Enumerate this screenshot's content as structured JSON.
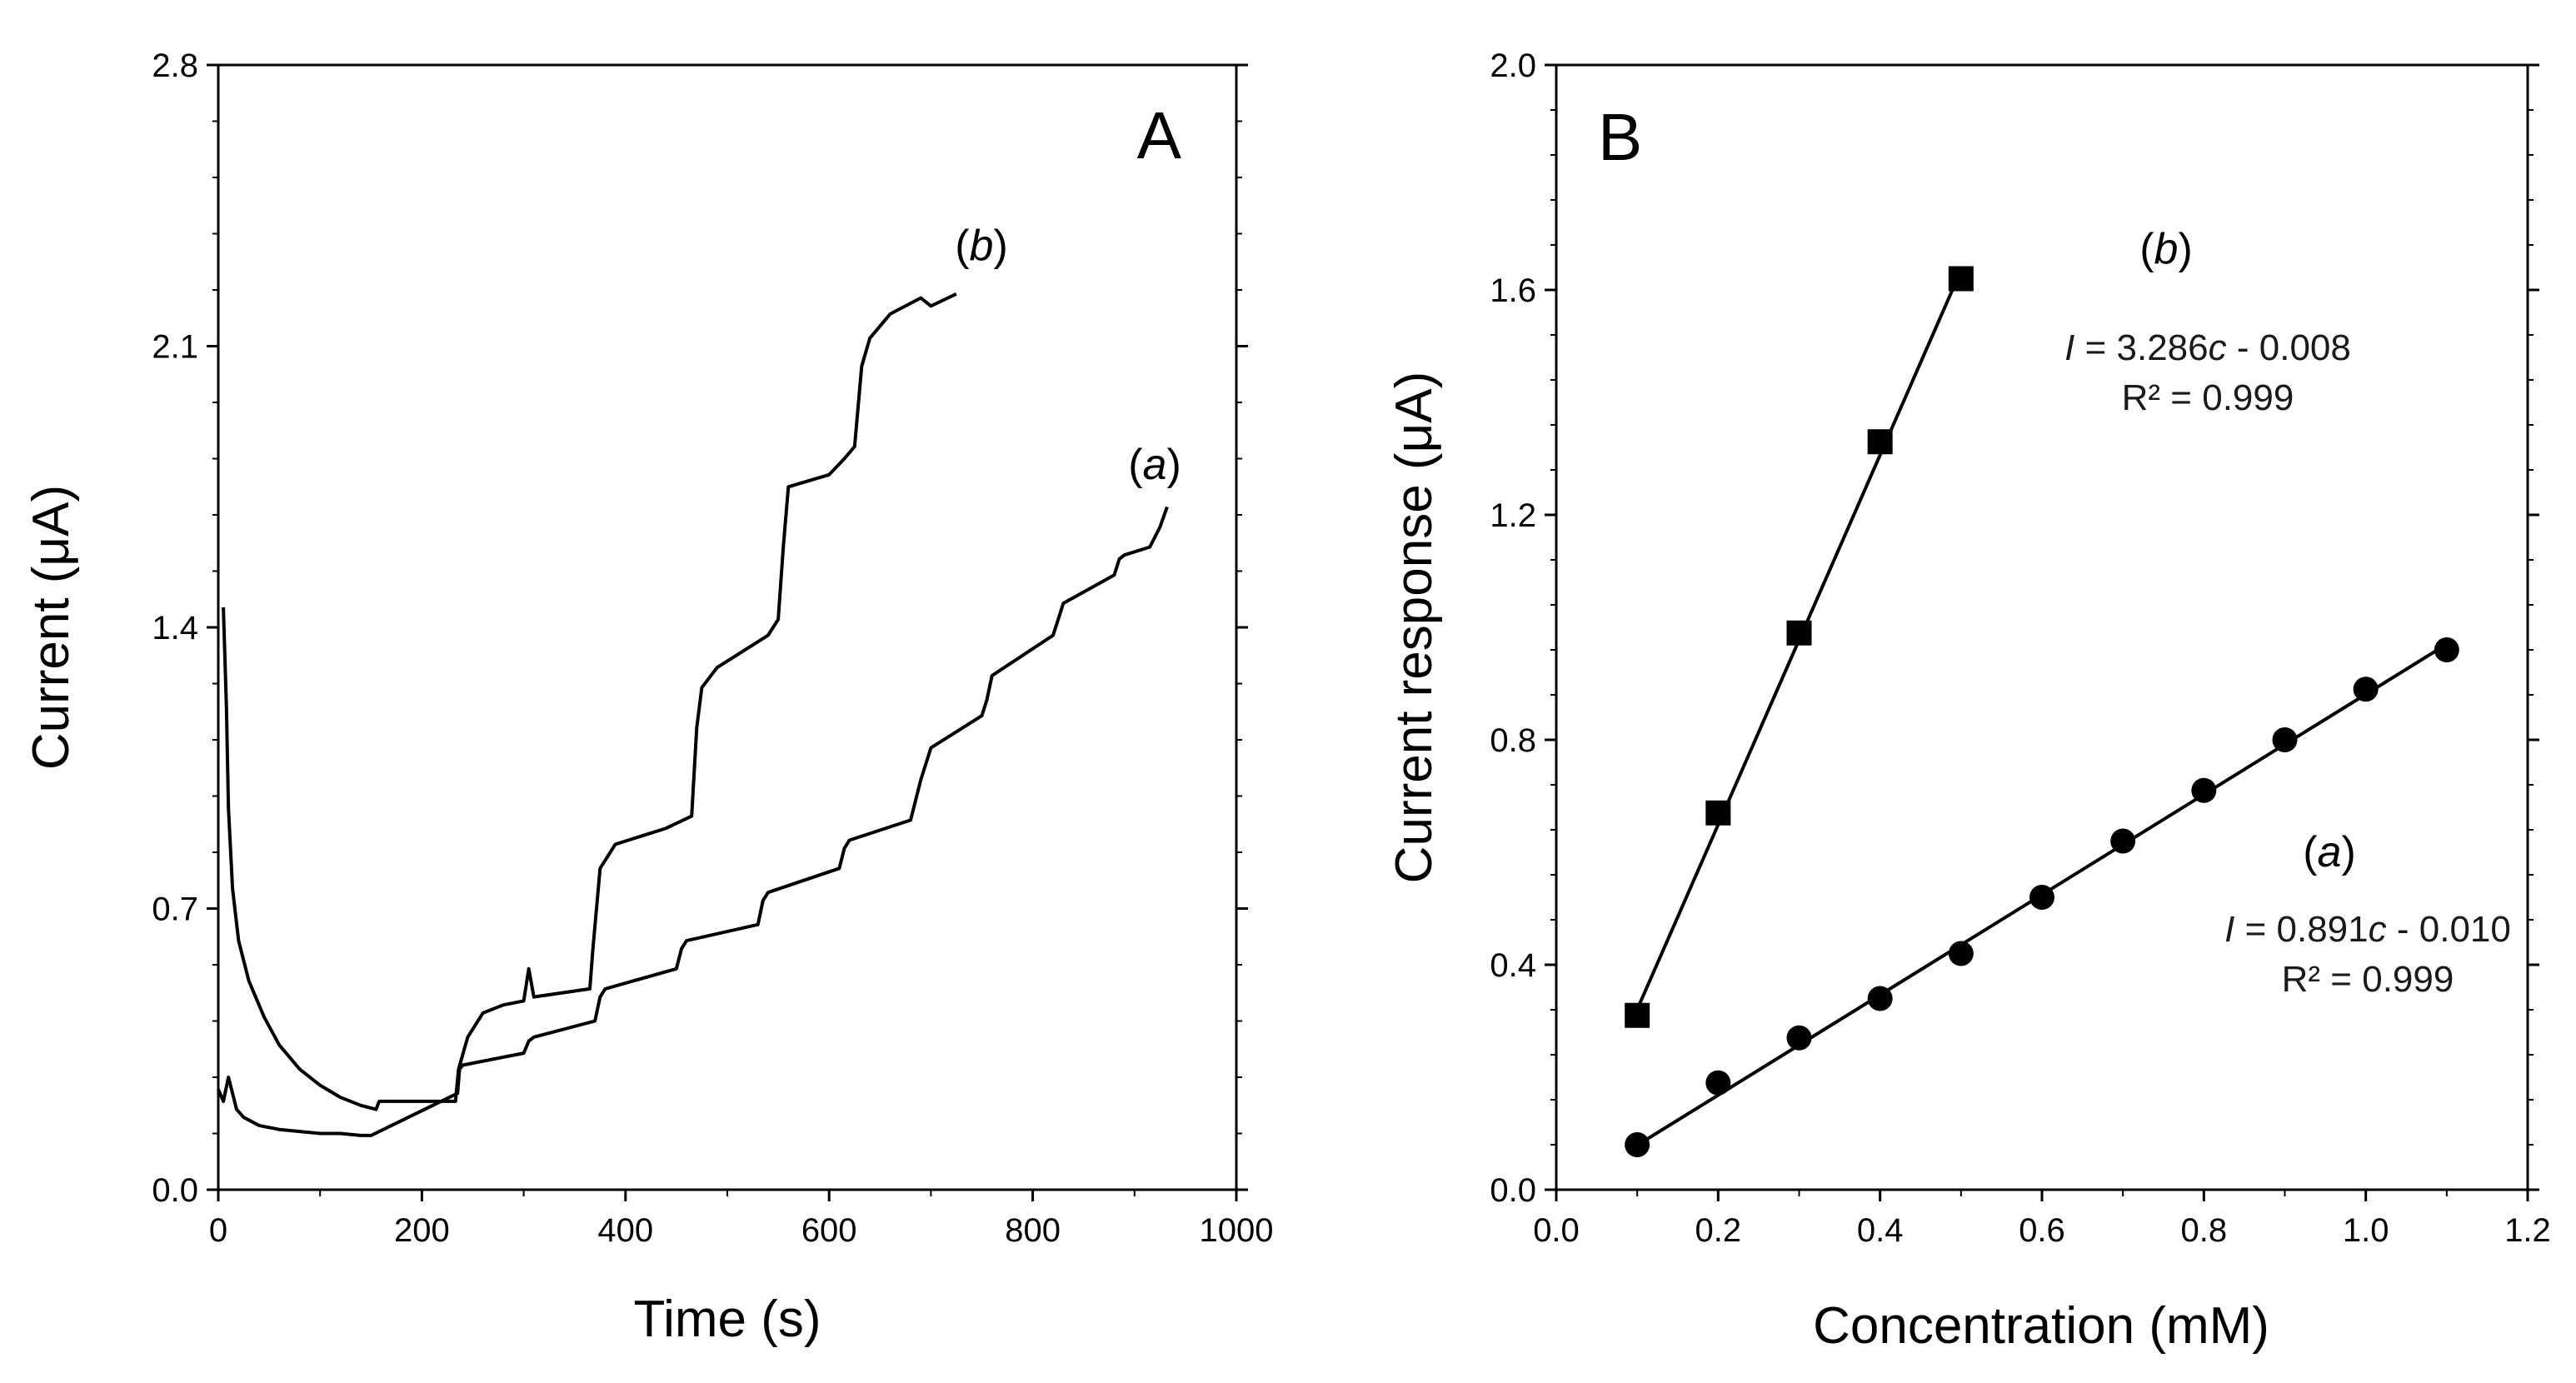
{
  "chart_data": [
    {
      "type": "line",
      "panel_label": "A",
      "xlabel": "Time (s)",
      "ylabel": "Current (μA)",
      "xlim": [
        0,
        1000
      ],
      "ylim": [
        0,
        2.8
      ],
      "xticks": [
        "0",
        "200",
        "400",
        "600",
        "800",
        "1000"
      ],
      "yticks": [
        "0.0",
        "0.7",
        "1.4",
        "2.1",
        "2.8"
      ],
      "grid": false,
      "series": [
        {
          "name": "a",
          "label_prefix": "(",
          "label_name": "a",
          "label_suffix": ")",
          "x": [
            0,
            5,
            10,
            14,
            18,
            25,
            40,
            60,
            80,
            100,
            120,
            140,
            150,
            235,
            237,
            240,
            300,
            305,
            310,
            370,
            375,
            380,
            450,
            455,
            460,
            530,
            535,
            540,
            610,
            615,
            620,
            680,
            690,
            700,
            750,
            755,
            760,
            820,
            825,
            830,
            880,
            885,
            890,
            915,
            925,
            932
          ],
          "y": [
            0.25,
            0.22,
            0.28,
            0.24,
            0.2,
            0.18,
            0.16,
            0.15,
            0.145,
            0.14,
            0.14,
            0.135,
            0.135,
            0.24,
            0.3,
            0.31,
            0.34,
            0.37,
            0.38,
            0.42,
            0.48,
            0.5,
            0.55,
            0.6,
            0.62,
            0.66,
            0.72,
            0.74,
            0.8,
            0.85,
            0.87,
            0.92,
            1.02,
            1.1,
            1.18,
            1.22,
            1.28,
            1.38,
            1.42,
            1.46,
            1.53,
            1.57,
            1.58,
            1.6,
            1.65,
            1.7
          ]
        },
        {
          "name": "b",
          "label_prefix": "(",
          "label_name": "b",
          "label_suffix": ")",
          "x": [
            5,
            8,
            10,
            14,
            20,
            30,
            45,
            60,
            80,
            100,
            120,
            140,
            155,
            158,
            160,
            200,
            233,
            236,
            245,
            260,
            280,
            300,
            305,
            310,
            365,
            368,
            375,
            390,
            440,
            465,
            470,
            475,
            490,
            540,
            550,
            555,
            560,
            600,
            615,
            625,
            632,
            640,
            660,
            690,
            700,
            725
          ],
          "y": [
            1.45,
            1.2,
            0.95,
            0.75,
            0.62,
            0.52,
            0.43,
            0.36,
            0.3,
            0.26,
            0.23,
            0.21,
            0.2,
            0.22,
            0.22,
            0.22,
            0.22,
            0.3,
            0.38,
            0.44,
            0.46,
            0.47,
            0.55,
            0.48,
            0.5,
            0.6,
            0.8,
            0.86,
            0.9,
            0.93,
            1.15,
            1.25,
            1.3,
            1.38,
            1.42,
            1.6,
            1.75,
            1.78,
            1.82,
            1.85,
            2.05,
            2.12,
            2.18,
            2.22,
            2.2,
            2.23
          ]
        }
      ]
    },
    {
      "type": "scatter",
      "panel_label": "B",
      "xlabel": "Concentration (mM)",
      "ylabel": "Current response (μA)",
      "xlim": [
        0,
        1.2
      ],
      "ylim": [
        0,
        2.0
      ],
      "xticks": [
        "0.0",
        "0.2",
        "0.4",
        "0.6",
        "0.8",
        "1.0",
        "1.2"
      ],
      "yticks": [
        "0.0",
        "0.4",
        "0.8",
        "1.2",
        "1.6",
        "2.0"
      ],
      "grid": false,
      "series": [
        {
          "name": "a",
          "marker": "circle",
          "x": [
            0.1,
            0.2,
            0.3,
            0.4,
            0.5,
            0.6,
            0.7,
            0.8,
            0.9,
            1.0,
            1.1
          ],
          "y": [
            0.08,
            0.19,
            0.27,
            0.34,
            0.42,
            0.52,
            0.62,
            0.71,
            0.8,
            0.89,
            0.96
          ],
          "fit": {
            "slope": 0.891,
            "intercept": -0.01
          },
          "label_prefix": "(",
          "label_name": "a",
          "label_suffix": ")",
          "eq_var": "I",
          "eq_mid": " = 0.891",
          "eq_c": "c",
          "eq_tail": " - 0.010",
          "r2": "R² = 0.999"
        },
        {
          "name": "b",
          "marker": "square",
          "x": [
            0.1,
            0.2,
            0.3,
            0.4,
            0.5
          ],
          "y": [
            0.31,
            0.67,
            0.99,
            1.33,
            1.62
          ],
          "fit": {
            "slope": 3.286,
            "intercept": -0.008
          },
          "label_prefix": "(",
          "label_name": "b",
          "label_suffix": ")",
          "eq_var": "I",
          "eq_mid": " = 3.286",
          "eq_c": "c",
          "eq_tail": " - 0.008",
          "r2": "R² = 0.999"
        }
      ]
    }
  ]
}
